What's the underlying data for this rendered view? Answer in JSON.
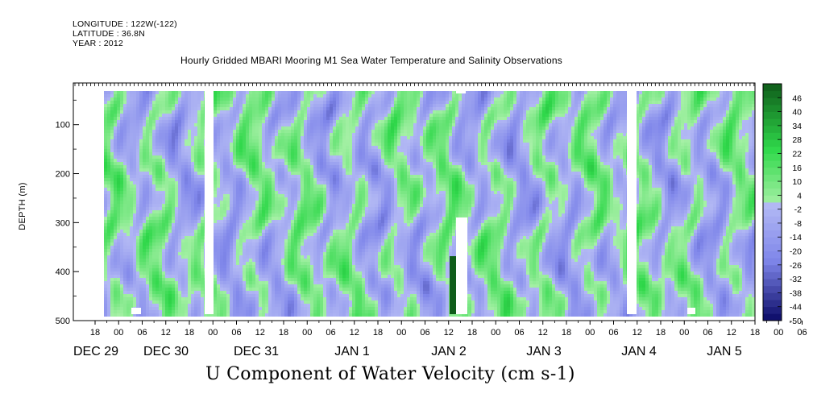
{
  "header": {
    "meta_lines": [
      "LONGITUDE : 122W(-122)",
      "LATITUDE : 36.8N",
      "YEAR : 2012"
    ]
  },
  "chart_data": {
    "type": "heatmap",
    "title": "Hourly Gridded MBARI Mooring M1 Sea Water Temperature and Salinity Observations",
    "xlabel": "U Component of Water Velocity (cm s-1)",
    "ylabel": "DEPTH (m)",
    "x_tick_labels": [
      "18",
      "00",
      "06",
      "12",
      "18",
      "00",
      "06",
      "12",
      "18",
      "00",
      "06",
      "12",
      "18",
      "00",
      "06",
      "12",
      "18",
      "00",
      "06",
      "12",
      "18",
      "00",
      "06",
      "12",
      "18",
      "00",
      "06",
      "12",
      "18",
      "00",
      "06",
      "12"
    ],
    "date_labels": [
      "DEC 29",
      "DEC 30",
      "DEC 31",
      "JAN  1",
      "JAN  2",
      "JAN  3",
      "JAN  4",
      "JAN  5"
    ],
    "y_ticks": [
      100,
      200,
      300,
      400,
      500
    ],
    "ylim": [
      500,
      15
    ],
    "colorbar_ticks": [
      46,
      40,
      34,
      28,
      22,
      16,
      10,
      4,
      -2,
      -8,
      -14,
      -20,
      -26,
      -32,
      -38,
      -44,
      -50
    ],
    "colorbar_range": [
      -50,
      52
    ],
    "colorbar_step": 3,
    "colors": {
      "strong_positive": "#0f5c1a",
      "positive": "#2fd84a",
      "weak_positive": "#a6f0a6",
      "weak_negative": "#b3b9f4",
      "negative": "#7f86ea",
      "strong_negative": "#0a0a66",
      "missing": "#ffffff"
    }
  }
}
